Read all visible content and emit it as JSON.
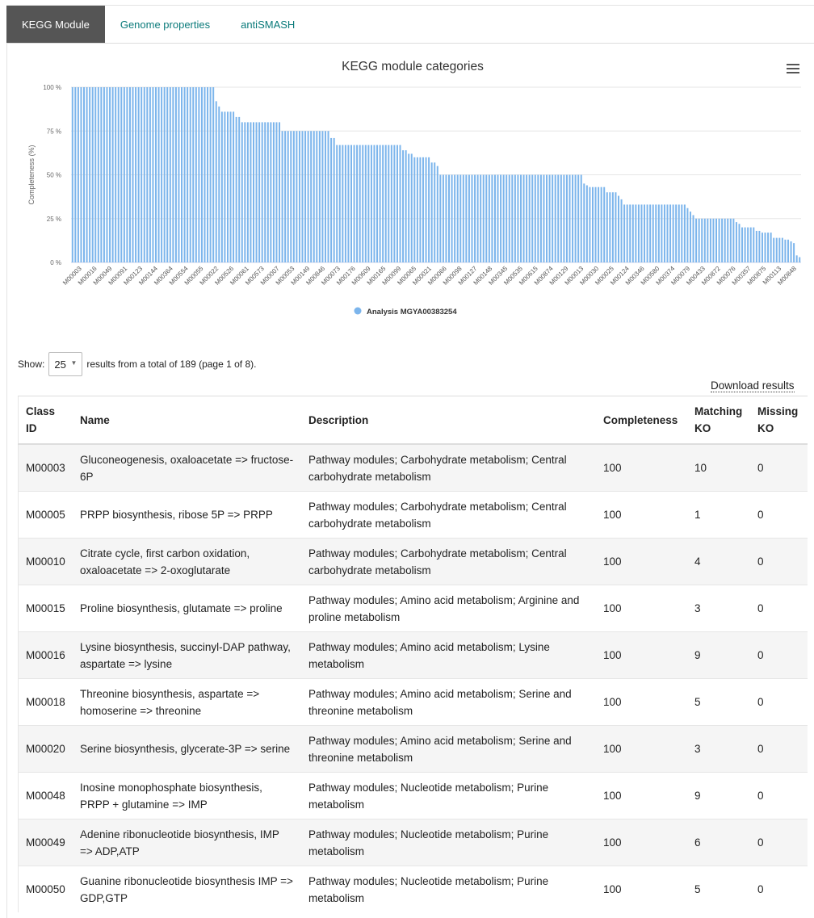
{
  "tabs": [
    {
      "label": "KEGG Module",
      "active": true
    },
    {
      "label": "Genome properties",
      "active": false
    },
    {
      "label": "antiSMASH",
      "active": false
    }
  ],
  "menu_icon": "hamburger-icon",
  "chart_data": {
    "type": "bar",
    "title": "KEGG module categories",
    "ylabel": "Completeness (%)",
    "ylim": [
      0,
      100
    ],
    "yticks": [
      "0 %",
      "25 %",
      "50 %",
      "75 %",
      "100 %"
    ],
    "legend": {
      "position": "bottom-center",
      "label": "Analysis MGYA00383254"
    },
    "color": "#7cb5ec",
    "grid": true,
    "xtick_labels": [
      "M00003",
      "M00016",
      "M00049",
      "M00091",
      "M00123",
      "M00144",
      "M00364",
      "M00554",
      "M00055",
      "M00022",
      "M00526",
      "M00061",
      "M00573",
      "M00007",
      "M00053",
      "M00149",
      "M00846",
      "M00073",
      "M00176",
      "M00609",
      "M00165",
      "M00099",
      "M00065",
      "M00021",
      "M00066",
      "M00098",
      "M00127",
      "M00148",
      "M00345",
      "M00535",
      "M00615",
      "M00874",
      "M00129",
      "M00013",
      "M00030",
      "M00025",
      "M00124",
      "M00346",
      "M00580",
      "M00374",
      "M00079",
      "M00433",
      "M00872",
      "M00076",
      "M00357",
      "M00875",
      "M00113",
      "M00848"
    ],
    "values": [
      100,
      100,
      100,
      100,
      100,
      100,
      100,
      100,
      100,
      100,
      100,
      100,
      100,
      100,
      100,
      100,
      100,
      100,
      100,
      100,
      100,
      100,
      100,
      100,
      100,
      100,
      100,
      100,
      100,
      100,
      100,
      100,
      100,
      100,
      100,
      100,
      100,
      100,
      100,
      100,
      100,
      100,
      100,
      100,
      100,
      100,
      100,
      100,
      100,
      100,
      92,
      89,
      86,
      86,
      86,
      86,
      86,
      83,
      83,
      80,
      80,
      80,
      80,
      80,
      80,
      80,
      80,
      80,
      80,
      80,
      80,
      80,
      80,
      75,
      75,
      75,
      75,
      75,
      75,
      75,
      75,
      75,
      75,
      75,
      75,
      75,
      75,
      75,
      75,
      75,
      71,
      71,
      67,
      67,
      67,
      67,
      67,
      67,
      67,
      67,
      67,
      67,
      67,
      67,
      67,
      67,
      67,
      67,
      67,
      67,
      67,
      67,
      67,
      67,
      67,
      64,
      64,
      62,
      62,
      60,
      60,
      60,
      60,
      60,
      60,
      57,
      57,
      55,
      50,
      50,
      50,
      50,
      50,
      50,
      50,
      50,
      50,
      50,
      50,
      50,
      50,
      50,
      50,
      50,
      50,
      50,
      50,
      50,
      50,
      50,
      50,
      50,
      50,
      50,
      50,
      50,
      50,
      50,
      50,
      50,
      50,
      50,
      50,
      50,
      50,
      50,
      50,
      50,
      50,
      50,
      50,
      50,
      50,
      50,
      50,
      50,
      50,
      50,
      45,
      44,
      43,
      43,
      43,
      43,
      43,
      43,
      40,
      40,
      40,
      40,
      38,
      36,
      33,
      33,
      33,
      33,
      33,
      33,
      33,
      33,
      33,
      33,
      33,
      33,
      33,
      33,
      33,
      33,
      33,
      33,
      33,
      33,
      33,
      33,
      31,
      29,
      27,
      25,
      25,
      25,
      25,
      25,
      25,
      25,
      25,
      25,
      25,
      25,
      25,
      25,
      25,
      23,
      22,
      20,
      20,
      20,
      20,
      20,
      18,
      18,
      17,
      17,
      17,
      17,
      14,
      14,
      14,
      14,
      13,
      13,
      12,
      11,
      4,
      3
    ]
  },
  "show": {
    "label": "Show:",
    "value": "25",
    "summary": "results from a total of 189 (page 1 of 8)."
  },
  "download_label": "Download results",
  "table": {
    "headers": [
      "Class ID",
      "Name",
      "Description",
      "Completeness",
      "Matching KO",
      "Missing KO"
    ],
    "rows": [
      {
        "id": "M00003",
        "name": "Gluconeogenesis, oxaloacetate => fructose-6P",
        "description": "Pathway modules; Carbohydrate metabolism; Central carbohydrate metabolism",
        "completeness": "100",
        "matching": "10",
        "missing": "0"
      },
      {
        "id": "M00005",
        "name": "PRPP biosynthesis, ribose 5P => PRPP",
        "description": "Pathway modules; Carbohydrate metabolism; Central carbohydrate metabolism",
        "completeness": "100",
        "matching": "1",
        "missing": "0"
      },
      {
        "id": "M00010",
        "name": "Citrate cycle, first carbon oxidation, oxaloacetate => 2-oxoglutarate",
        "description": "Pathway modules; Carbohydrate metabolism; Central carbohydrate metabolism",
        "completeness": "100",
        "matching": "4",
        "missing": "0"
      },
      {
        "id": "M00015",
        "name": "Proline biosynthesis, glutamate => proline",
        "description": "Pathway modules; Amino acid metabolism; Arginine and proline metabolism",
        "completeness": "100",
        "matching": "3",
        "missing": "0"
      },
      {
        "id": "M00016",
        "name": "Lysine biosynthesis, succinyl-DAP pathway, aspartate => lysine",
        "description": "Pathway modules; Amino acid metabolism; Lysine metabolism",
        "completeness": "100",
        "matching": "9",
        "missing": "0"
      },
      {
        "id": "M00018",
        "name": "Threonine biosynthesis, aspartate => homoserine => threonine",
        "description": "Pathway modules; Amino acid metabolism; Serine and threonine metabolism",
        "completeness": "100",
        "matching": "5",
        "missing": "0"
      },
      {
        "id": "M00020",
        "name": "Serine biosynthesis, glycerate-3P => serine",
        "description": "Pathway modules; Amino acid metabolism; Serine and threonine metabolism",
        "completeness": "100",
        "matching": "3",
        "missing": "0"
      },
      {
        "id": "M00048",
        "name": "Inosine monophosphate biosynthesis, PRPP + glutamine => IMP",
        "description": "Pathway modules; Nucleotide metabolism; Purine metabolism",
        "completeness": "100",
        "matching": "9",
        "missing": "0"
      },
      {
        "id": "M00049",
        "name": "Adenine ribonucleotide biosynthesis, IMP => ADP,ATP",
        "description": "Pathway modules; Nucleotide metabolism; Purine metabolism",
        "completeness": "100",
        "matching": "6",
        "missing": "0"
      },
      {
        "id": "M00050",
        "name": "Guanine ribonucleotide biosynthesis IMP => GDP,GTP",
        "description": "Pathway modules; Nucleotide metabolism; Purine metabolism",
        "completeness": "100",
        "matching": "5",
        "missing": "0"
      }
    ]
  }
}
